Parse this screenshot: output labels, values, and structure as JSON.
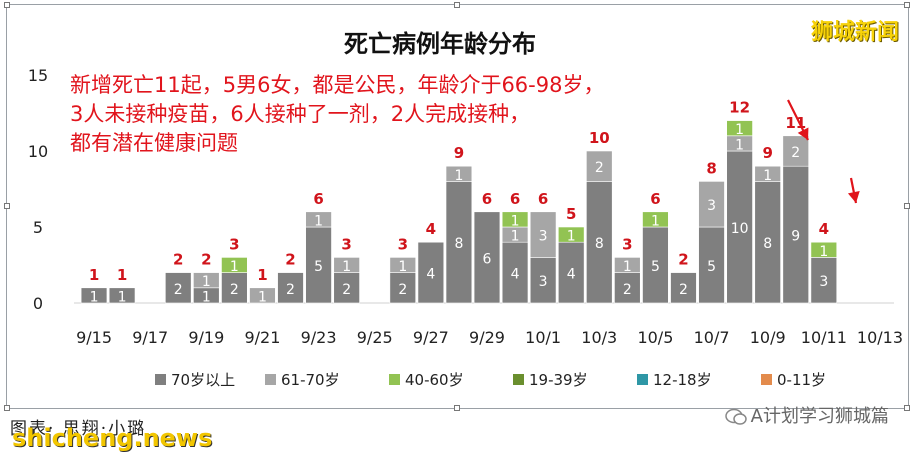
{
  "brand_label": "狮城新闻",
  "annotation_lines": [
    "新增死亡11起，5男6女，都是公民，年龄介于66-98岁，",
    "3人未接种疫苗，6人接种了一剂，2人完成接种，",
    "都有潜在健康问题"
  ],
  "footer": {
    "credit": "图表· 思翔·小璐",
    "watermark": "shicheng.news",
    "account": "A计划学习狮城篇"
  },
  "chart_data": {
    "type": "bar",
    "stacked": true,
    "title": "死亡病例年龄分布",
    "ylim": [
      0,
      15
    ],
    "yticks": [
      0,
      5,
      10,
      15
    ],
    "grid": false,
    "legend_position": "bottom",
    "categories": [
      "9/15",
      "9/16",
      "9/17",
      "9/18",
      "9/19",
      "9/20",
      "9/21",
      "9/22",
      "9/23",
      "9/24",
      "9/25",
      "9/26",
      "9/27",
      "9/28",
      "9/29",
      "9/30",
      "10/1",
      "10/2",
      "10/3",
      "10/4",
      "10/5",
      "10/6",
      "10/7",
      "10/8",
      "10/9",
      "10/10",
      "10/11",
      "10/12",
      "10/13"
    ],
    "xtick_labels": [
      "9/15",
      "9/17",
      "9/19",
      "9/21",
      "9/23",
      "9/25",
      "9/27",
      "9/29",
      "10/1",
      "10/3",
      "10/5",
      "10/7",
      "10/9",
      "10/11",
      "10/13"
    ],
    "series": [
      {
        "name": "70岁以上",
        "color": "#7f7f7f",
        "values": [
          1,
          1,
          0,
          2,
          1,
          2,
          0,
          2,
          5,
          2,
          0,
          2,
          4,
          8,
          6,
          4,
          3,
          4,
          8,
          2,
          5,
          2,
          5,
          10,
          8,
          9,
          3,
          0,
          0
        ]
      },
      {
        "name": "61-70岁",
        "color": "#a6a6a6",
        "values": [
          0,
          0,
          0,
          0,
          1,
          0,
          1,
          0,
          1,
          1,
          0,
          1,
          0,
          1,
          0,
          1,
          3,
          0,
          2,
          1,
          0,
          0,
          3,
          1,
          1,
          2,
          0,
          0,
          0
        ]
      },
      {
        "name": "40-60岁",
        "color": "#92c353",
        "values": [
          0,
          0,
          0,
          0,
          0,
          1,
          0,
          0,
          0,
          0,
          0,
          0,
          0,
          0,
          0,
          1,
          0,
          1,
          0,
          0,
          1,
          0,
          0,
          1,
          0,
          0,
          1,
          0,
          0
        ]
      },
      {
        "name": "19-39岁",
        "color": "#6a8f2e",
        "values": [
          0,
          0,
          0,
          0,
          0,
          0,
          0,
          0,
          0,
          0,
          0,
          0,
          0,
          0,
          0,
          0,
          0,
          0,
          0,
          0,
          0,
          0,
          0,
          0,
          0,
          0,
          0,
          0,
          0
        ]
      },
      {
        "name": "12-18岁",
        "color": "#2e97a6",
        "values": [
          0,
          0,
          0,
          0,
          0,
          0,
          0,
          0,
          0,
          0,
          0,
          0,
          0,
          0,
          0,
          0,
          0,
          0,
          0,
          0,
          0,
          0,
          0,
          0,
          0,
          0,
          0,
          0,
          0
        ]
      },
      {
        "name": "0-11岁",
        "color": "#e38b4c",
        "values": [
          0,
          0,
          0,
          0,
          0,
          0,
          0,
          0,
          0,
          0,
          0,
          0,
          0,
          0,
          0,
          0,
          0,
          0,
          0,
          0,
          0,
          0,
          0,
          0,
          0,
          0,
          0,
          0,
          0
        ]
      }
    ],
    "totals": [
      1,
      1,
      0,
      2,
      2,
      3,
      1,
      2,
      6,
      3,
      0,
      3,
      4,
      9,
      6,
      6,
      6,
      5,
      10,
      3,
      6,
      2,
      8,
      12,
      9,
      11,
      4,
      0,
      0
    ]
  }
}
